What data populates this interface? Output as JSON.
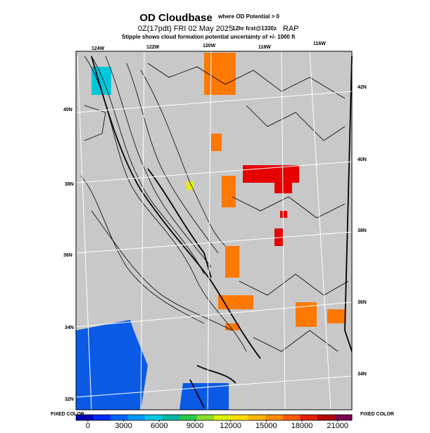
{
  "header": {
    "title": "OD Cloudbase",
    "condition": "where OD Potential > 0",
    "valid": "0Z(17pdt) FRI 02 May 2025",
    "forecast": "12hr fcst@1330z",
    "model": "RAP",
    "note": "Stipple shows cloud formation potential uncertainty of +/- 1000 ft"
  },
  "map": {
    "lon_labels": [
      "124W",
      "122W",
      "120W",
      "118W",
      "116W"
    ],
    "lat_labels_left": [
      "40N",
      "38N",
      "36N",
      "34N",
      "32N"
    ],
    "lat_labels_right": [
      "42N",
      "40N",
      "38N",
      "36N",
      "34N"
    ]
  },
  "colorbar": {
    "clim": [
      -1000,
      22200
    ],
    "ticks": [
      0,
      3000,
      6000,
      9000,
      12000,
      15000,
      18000,
      21000
    ],
    "colors": [
      "#0000b4",
      "#0028ff",
      "#0064ff",
      "#0096ff",
      "#00c8e6",
      "#00b4a0",
      "#28c850",
      "#8cdc28",
      "#dcf000",
      "#ffdc00",
      "#ffb400",
      "#ff8c00",
      "#ff5a00",
      "#e61e00",
      "#b40000",
      "#780050"
    ],
    "left_label": "FIXED COLOR",
    "right_label": "FIXED COLOR"
  }
}
